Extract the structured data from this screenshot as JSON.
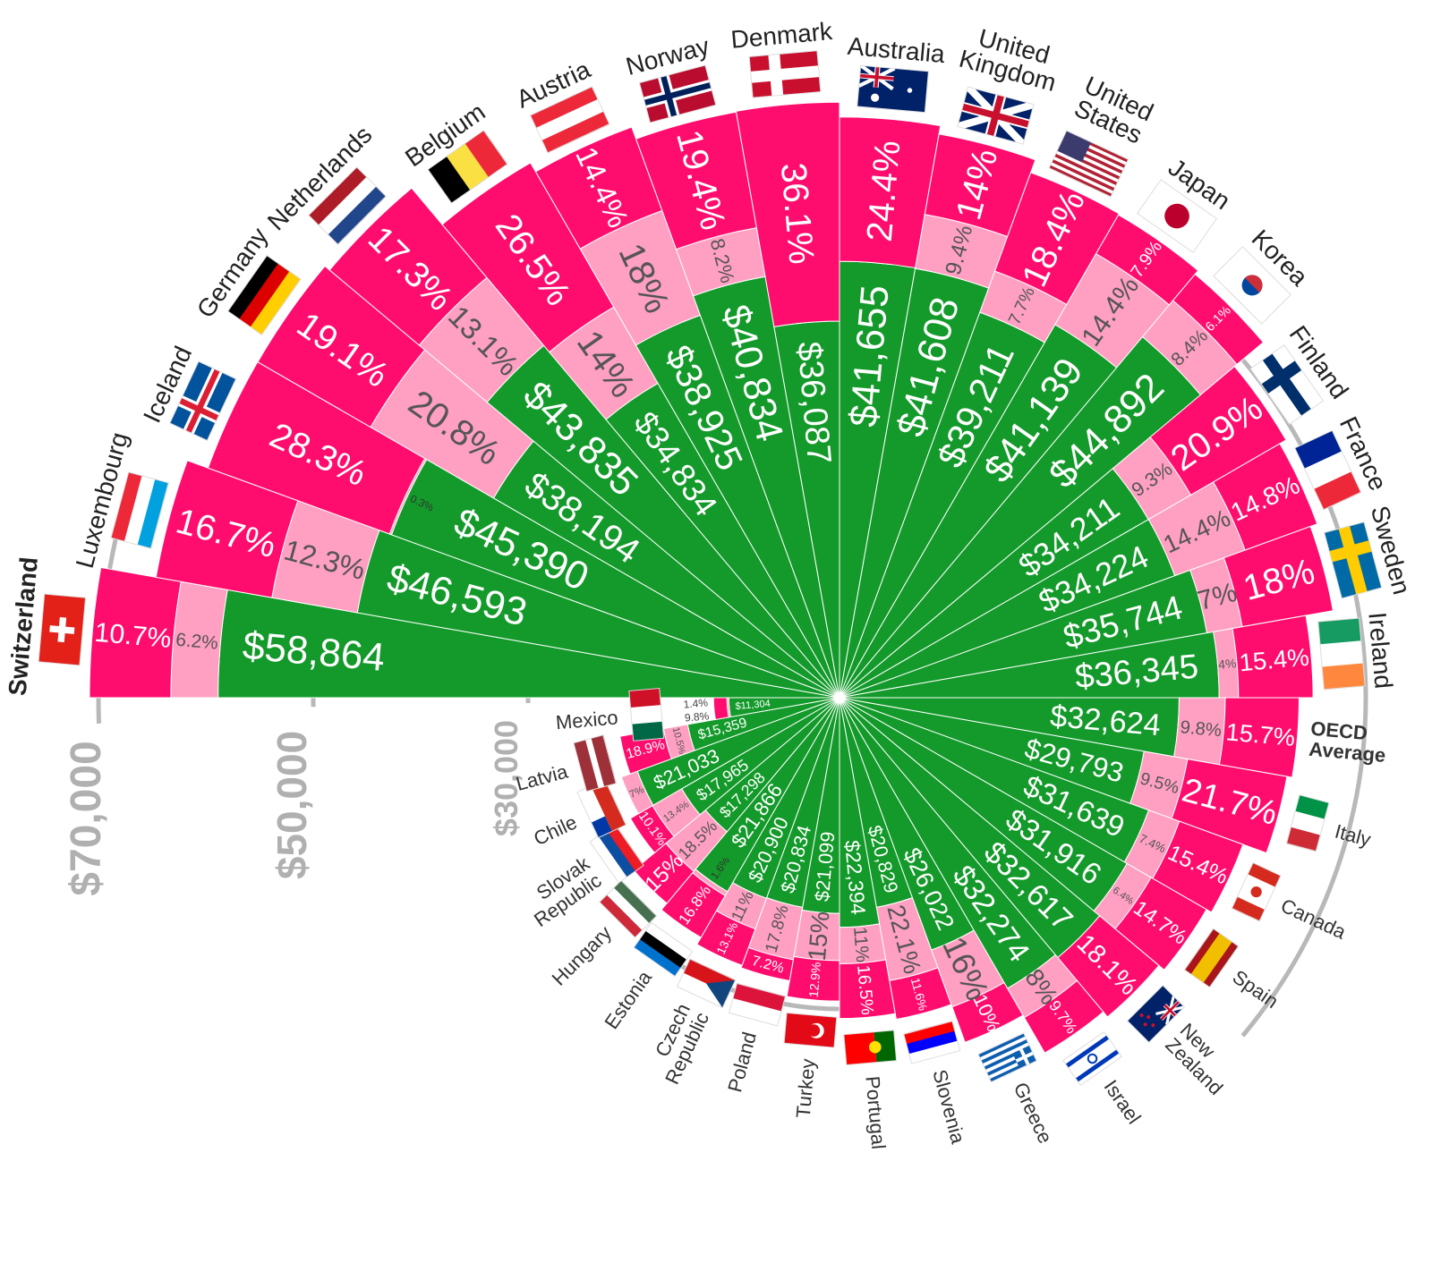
{
  "chart_data": {
    "type": "bar",
    "layout": "radial-stacked",
    "categories": [
      "Switzerland",
      "Luxembourg",
      "Iceland",
      "Germany",
      "Netherlands",
      "Belgium",
      "Austria",
      "Norway",
      "Denmark",
      "Australia",
      "United Kingdom",
      "United States",
      "Japan",
      "Korea",
      "Finland",
      "France",
      "Sweden",
      "Ireland",
      "OECD Average",
      "Italy",
      "Canada",
      "Spain",
      "New Zealand",
      "Israel",
      "Greece",
      "Slovenia",
      "Portugal",
      "Turkey",
      "Poland",
      "Czech Republic",
      "Estonia",
      "Hungary",
      "Slovak Republic",
      "Chile",
      "Latvia",
      "Mexico"
    ],
    "flags": [
      "ch",
      "lu",
      "is",
      "de",
      "nl",
      "be",
      "at",
      "no",
      "dk",
      "au",
      "gb",
      "us",
      "jp",
      "kr",
      "fi",
      "fr",
      "se",
      "ie",
      "",
      "it",
      "ca",
      "es",
      "nz",
      "il",
      "gr",
      "si",
      "pt",
      "tr",
      "pl",
      "cz",
      "ee",
      "hu",
      "sk",
      "cl",
      "lv",
      "mx"
    ],
    "series": [
      {
        "values": [
          58864,
          46593,
          45390,
          38194,
          43835,
          34834,
          38925,
          40834,
          36087,
          41655,
          41608,
          39211,
          41139,
          44892,
          34211,
          34224,
          35744,
          36345,
          32624,
          29793,
          31639,
          31916,
          32617,
          32274,
          26022,
          20829,
          22394,
          21099,
          20834,
          20900,
          21866,
          17298,
          17965,
          21033,
          15359,
          11304
        ],
        "color": "#139a2a"
      },
      {
        "values": [
          6.2,
          12.3,
          0.3,
          20.8,
          13.1,
          14,
          18,
          8.2,
          0,
          0,
          9.4,
          7.7,
          14.4,
          8.4,
          9.3,
          14.4,
          7,
          4,
          9.8,
          9.5,
          7.4,
          6.4,
          0,
          8,
          16,
          22.1,
          11,
          15,
          17.8,
          11,
          1.6,
          18.5,
          13.4,
          7,
          10.5,
          1.4
        ],
        "color": "#ff9fc2"
      },
      {
        "values": [
          10.7,
          16.7,
          28.3,
          19.1,
          17.3,
          26.5,
          14.4,
          19.4,
          36.1,
          24.4,
          14,
          18.4,
          7.9,
          6.1,
          20.9,
          14.8,
          18,
          15.4,
          15.7,
          21.7,
          15.4,
          14.7,
          18.1,
          9.7,
          10,
          11.6,
          16.5,
          12.9,
          7.2,
          13.1,
          16.8,
          15,
          10.1,
          0,
          18.9,
          9.8
        ],
        "color": "#ff0d6e"
      }
    ],
    "axis": {
      "ticks": [
        30000,
        50000,
        70000
      ],
      "tick_labels": [
        "$30,000",
        "$50,000",
        "$70,000"
      ]
    },
    "legend": "none",
    "grid": false
  }
}
